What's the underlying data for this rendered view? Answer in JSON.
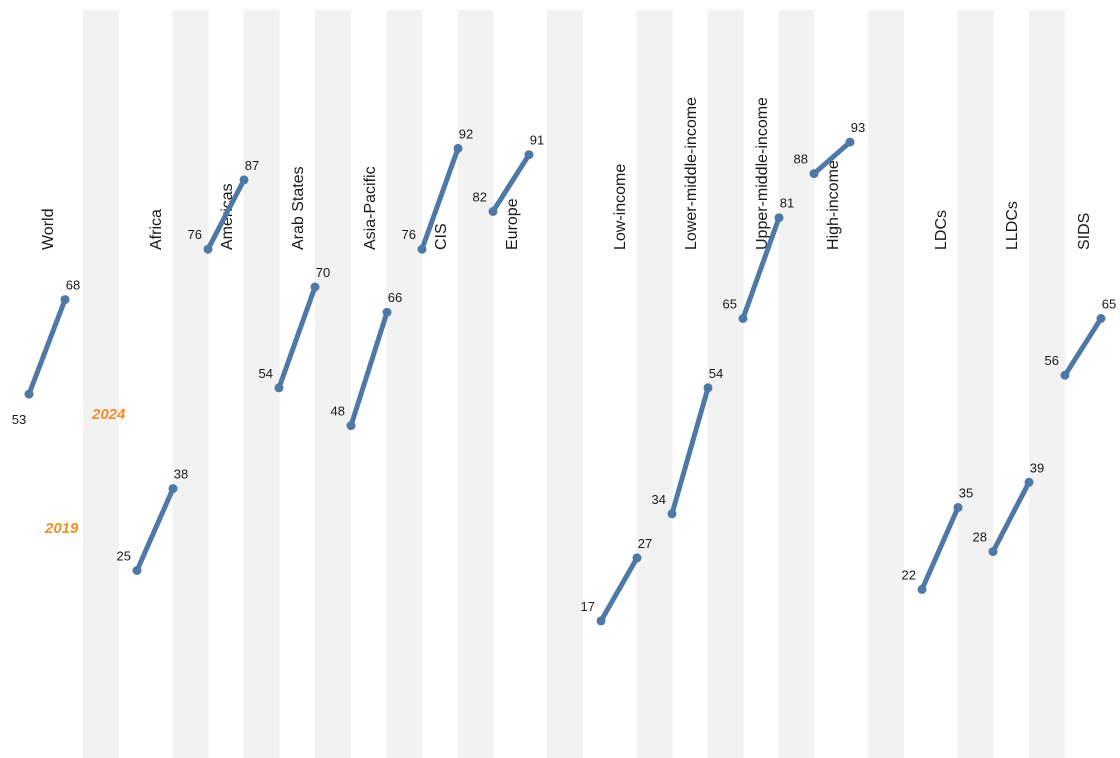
{
  "chart_data": {
    "type": "line",
    "title": "",
    "xlabel": "",
    "ylabel": "",
    "ylim": [
      0,
      100
    ],
    "grid": false,
    "legend": "none",
    "years": [
      "2019",
      "2024"
    ],
    "series": [
      {
        "name": "2019",
        "values": [
          53,
          25,
          76,
          54,
          48,
          76,
          82,
          17,
          34,
          65,
          88,
          22,
          28,
          56
        ]
      },
      {
        "name": "2024",
        "values": [
          68,
          38,
          87,
          70,
          66,
          92,
          91,
          27,
          54,
          81,
          93,
          35,
          39,
          65
        ]
      }
    ],
    "categories": [
      "World",
      "Africa",
      "Americas",
      "Arab States",
      "Asia-Pacific",
      "CIS",
      "Europe",
      "Low-income",
      "Lower-middle-income",
      "Upper-middle-income",
      "High-income",
      "LDCs",
      "LLDCs",
      "SIDS"
    ],
    "colors": {
      "line": "#4e79a7",
      "band": "#f2f2f2",
      "year_annotation": "#f28e2b"
    }
  }
}
